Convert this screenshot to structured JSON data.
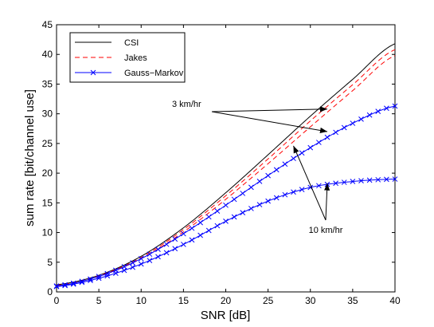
{
  "chart_data": {
    "type": "line",
    "xlabel": "SNR [dB]",
    "ylabel": "sum rate [bit/channel use]",
    "xlim": [
      0,
      40
    ],
    "ylim": [
      0,
      45
    ],
    "xticks": [
      0,
      5,
      10,
      15,
      20,
      25,
      30,
      35,
      40
    ],
    "yticks": [
      0,
      5,
      10,
      15,
      20,
      25,
      30,
      35,
      40,
      45
    ],
    "grid": false,
    "legend_position": "top-left",
    "legend": [
      "CSI",
      "Jakes",
      "Gauss−Markov"
    ],
    "series": [
      {
        "name": "CSI",
        "style": "solid",
        "color": "#000000",
        "marker": "none",
        "x": [
          0,
          5,
          10,
          15,
          20,
          25,
          30,
          35,
          40
        ],
        "y": [
          1.2,
          2.8,
          6.0,
          10.8,
          16.7,
          23.1,
          29.6,
          35.8,
          41.8
        ]
      },
      {
        "name": "Jakes",
        "style": "dashed",
        "color": "#ff0000",
        "marker": "none",
        "x": [
          0,
          5,
          10,
          15,
          20,
          25,
          30,
          35,
          40
        ],
        "y": [
          1.1,
          2.7,
          5.8,
          10.5,
          16.2,
          22.4,
          28.8,
          34.9,
          40.8
        ]
      },
      {
        "name": "Jakes",
        "style": "dashed",
        "color": "#ff0000",
        "marker": "none",
        "x": [
          0,
          5,
          10,
          15,
          20,
          25,
          30,
          35,
          40
        ],
        "y": [
          1.0,
          2.6,
          5.6,
          10.1,
          15.6,
          21.6,
          27.8,
          33.9,
          39.8
        ]
      },
      {
        "name": "Gauss−Markov",
        "style": "solid",
        "color": "#0000ff",
        "marker": "x",
        "x": [
          0,
          5,
          10,
          15,
          20,
          25,
          30,
          35,
          40
        ],
        "y": [
          1.0,
          2.6,
          5.6,
          9.8,
          14.6,
          19.6,
          24.3,
          28.4,
          31.3
        ]
      },
      {
        "name": "Gauss−Markov",
        "style": "solid",
        "color": "#0000ff",
        "marker": "x",
        "x": [
          0,
          5,
          10,
          15,
          20,
          25,
          30,
          35,
          40
        ],
        "y": [
          0.9,
          2.3,
          4.7,
          8.0,
          11.9,
          15.3,
          17.6,
          18.6,
          19.0
        ]
      }
    ],
    "annotations": [
      {
        "text": "3 km/hr",
        "points_to": [
          [
            32,
            30.8
          ],
          [
            32,
            27.0
          ]
        ]
      },
      {
        "text": "10 km/hr",
        "points_to": [
          [
            28,
            24.6
          ],
          [
            32,
            18.3
          ]
        ]
      }
    ]
  }
}
